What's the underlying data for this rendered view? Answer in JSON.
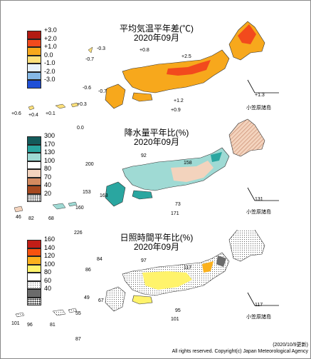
{
  "panels": [
    {
      "title": "平均気温平年差(℃)",
      "month": "2020年09月",
      "legend": [
        {
          "label": "+3.0",
          "color": "#b31a12"
        },
        {
          "label": "+2.0",
          "color": "#f24a1d"
        },
        {
          "label": "+1.0",
          "color": "#f7a81c"
        },
        {
          "label": "0.0",
          "color": "#fde07a"
        },
        {
          "label": "-1.0",
          "color": "#e8f2fa"
        },
        {
          "label": "-2.0",
          "color": "#86b9e6"
        },
        {
          "label": "-3.0",
          "color": "#1f4fd6"
        }
      ],
      "values": [
        "-0.3",
        "+0.8",
        "-0.7",
        "+2.5",
        "-0.6",
        "-0.7",
        "+1.2",
        "+0.9",
        "+0.6",
        "+0.4",
        "+0.1",
        "+0.3",
        "+1.3"
      ],
      "region_label": "小笠原諸島"
    },
    {
      "title": "降水量平年比(%)",
      "month": "2020年09月",
      "legend": [
        {
          "label": "300",
          "color": "#145b5b"
        },
        {
          "label": "170",
          "color": "#2aa6a0"
        },
        {
          "label": "130",
          "color": "#9fdad4"
        },
        {
          "label": "100",
          "color": "#ffffff"
        },
        {
          "label": "80",
          "color": "#f3d3bd"
        },
        {
          "label": "70",
          "color": "#d38a60"
        },
        {
          "label": "40",
          "color": "#a6481f"
        },
        {
          "label": "20",
          "color": "#ffffff"
        }
      ],
      "values": [
        "0.0",
        "92",
        "200",
        "158",
        "153",
        "163",
        "73",
        "171",
        "46",
        "82",
        "68",
        "160",
        "226",
        "131"
      ],
      "region_label": "小笠原諸島"
    },
    {
      "title": "日照時間平年比(%)",
      "month": "2020年09月",
      "legend": [
        {
          "label": "160",
          "color": "#c21d17"
        },
        {
          "label": "140",
          "color": "#f7520f"
        },
        {
          "label": "120",
          "color": "#fbb11d"
        },
        {
          "label": "100",
          "color": "#fff36b"
        },
        {
          "label": "80",
          "color": "#ffffff"
        },
        {
          "label": "60",
          "color": "#c4c4c4"
        },
        {
          "label": "40",
          "color": "#6b6b6b"
        },
        {
          "label": "",
          "color": "#ffffff"
        }
      ],
      "values": [
        "84",
        "97",
        "86",
        "117",
        "49",
        "67",
        "95",
        "101",
        "55",
        "81",
        "96",
        "101",
        "87",
        "117"
      ],
      "region_label": "小笠原諸島"
    }
  ],
  "footer": {
    "date": "(2020/10/9更新)",
    "copyright": "All rights reserved. Copyright(c) Japan Meteorological Agency"
  }
}
